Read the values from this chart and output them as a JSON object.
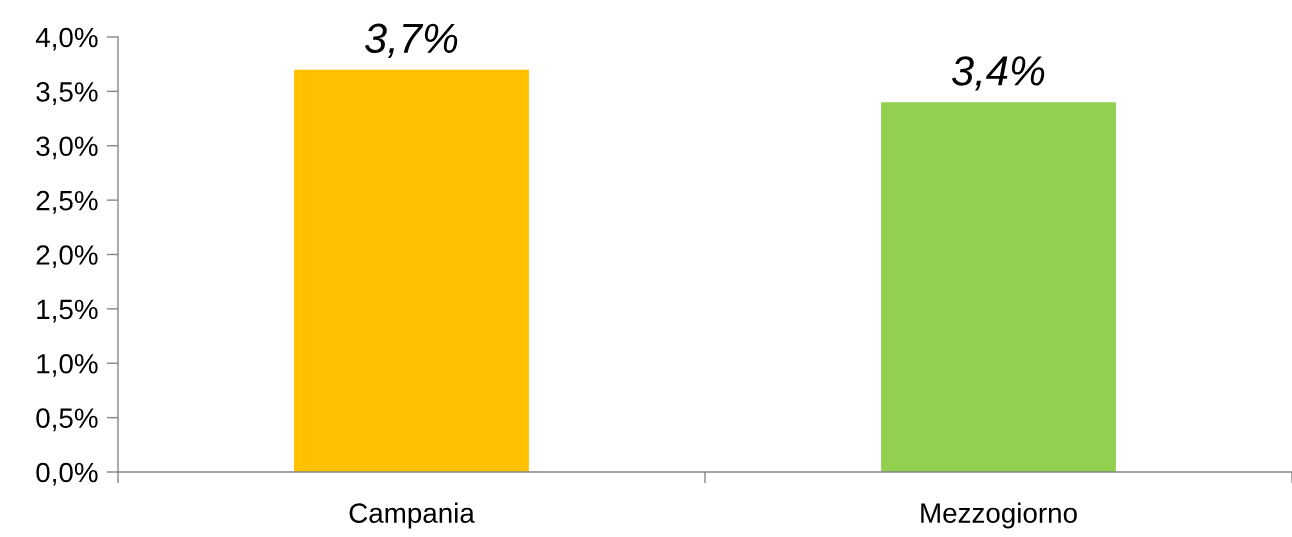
{
  "chart_data": {
    "type": "bar",
    "categories": [
      "Campania",
      "Mezzogiorno"
    ],
    "values": [
      3.7,
      3.4
    ],
    "colors": [
      "#ffc000",
      "#92d050"
    ],
    "ylim": [
      0,
      4
    ],
    "yticks": [
      {
        "value": 0,
        "label": "0,0%"
      },
      {
        "value": 0.5,
        "label": "0,5%"
      },
      {
        "value": 1,
        "label": "1,0%"
      },
      {
        "value": 1.5,
        "label": "1,5%"
      },
      {
        "value": 2,
        "label": "2,0%"
      },
      {
        "value": 2.5,
        "label": "2,5%"
      },
      {
        "value": 3,
        "label": "3,0%"
      },
      {
        "value": 3.5,
        "label": "3,5%"
      },
      {
        "value": 4,
        "label": "4,0%"
      }
    ],
    "value_labels": [
      "3,7%",
      "3,4%"
    ]
  }
}
